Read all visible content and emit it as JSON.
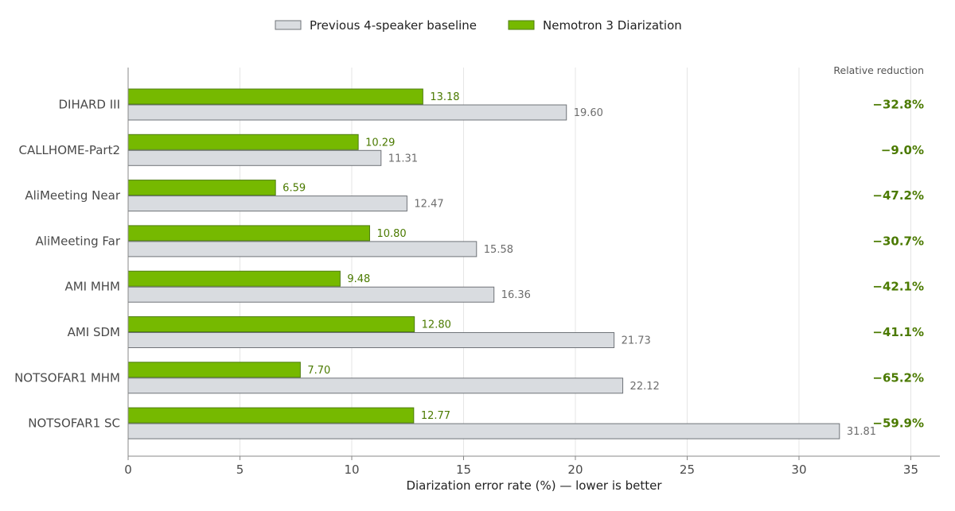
{
  "chart_data": {
    "type": "bar",
    "orientation": "horizontal",
    "categories": [
      "DIHARD III",
      "CALLHOME-Part2",
      "AliMeeting Near",
      "AliMeeting Far",
      "AMI MHM",
      "AMI SDM",
      "NOTSOFAR1 MHM",
      "NOTSOFAR1 SC"
    ],
    "series": [
      {
        "name": "Nemotron 3 Diarization",
        "color": "#76b900",
        "values": [
          13.18,
          10.29,
          6.59,
          10.8,
          9.48,
          12.8,
          7.7,
          12.77
        ],
        "labels": [
          "13.18",
          "10.29",
          "6.59",
          "10.80",
          "9.48",
          "12.80",
          "7.70",
          "12.77"
        ]
      },
      {
        "name": "Previous 4-speaker baseline",
        "color": "#d9dce0",
        "values": [
          19.6,
          11.31,
          12.47,
          15.58,
          16.36,
          21.73,
          22.12,
          31.81
        ],
        "labels": [
          "19.60",
          "11.31",
          "12.47",
          "15.58",
          "16.36",
          "21.73",
          "22.12",
          "31.81"
        ]
      }
    ],
    "relative_reduction": {
      "header": "Relative reduction",
      "values": [
        "−32.8%",
        "−9.0%",
        "−47.2%",
        "−30.7%",
        "−42.1%",
        "−41.1%",
        "−65.2%",
        "−59.9%"
      ]
    },
    "legend_order": [
      "Previous 4-speaker baseline",
      "Nemotron 3 Diarization"
    ],
    "legend_placement": "top-center",
    "xlabel": "Diarization error rate (%) — lower is better",
    "ylabel": "",
    "xlim": [
      0,
      36.3
    ],
    "xticks": [
      0,
      5,
      10,
      15,
      20,
      25,
      30,
      35
    ],
    "xtick_labels": [
      "0",
      "5",
      "10",
      "15",
      "20",
      "25",
      "30",
      "35"
    ],
    "grid": "vertical",
    "colors": {
      "new_fill": "#76b900",
      "new_stroke": "#4e7d0f",
      "old_fill": "#d9dce0",
      "old_stroke": "#6f7378",
      "new_label": "#4b7a00",
      "old_label": "#6d6d6d",
      "grid": "#e6e6e6",
      "axis": "#888888"
    }
  }
}
